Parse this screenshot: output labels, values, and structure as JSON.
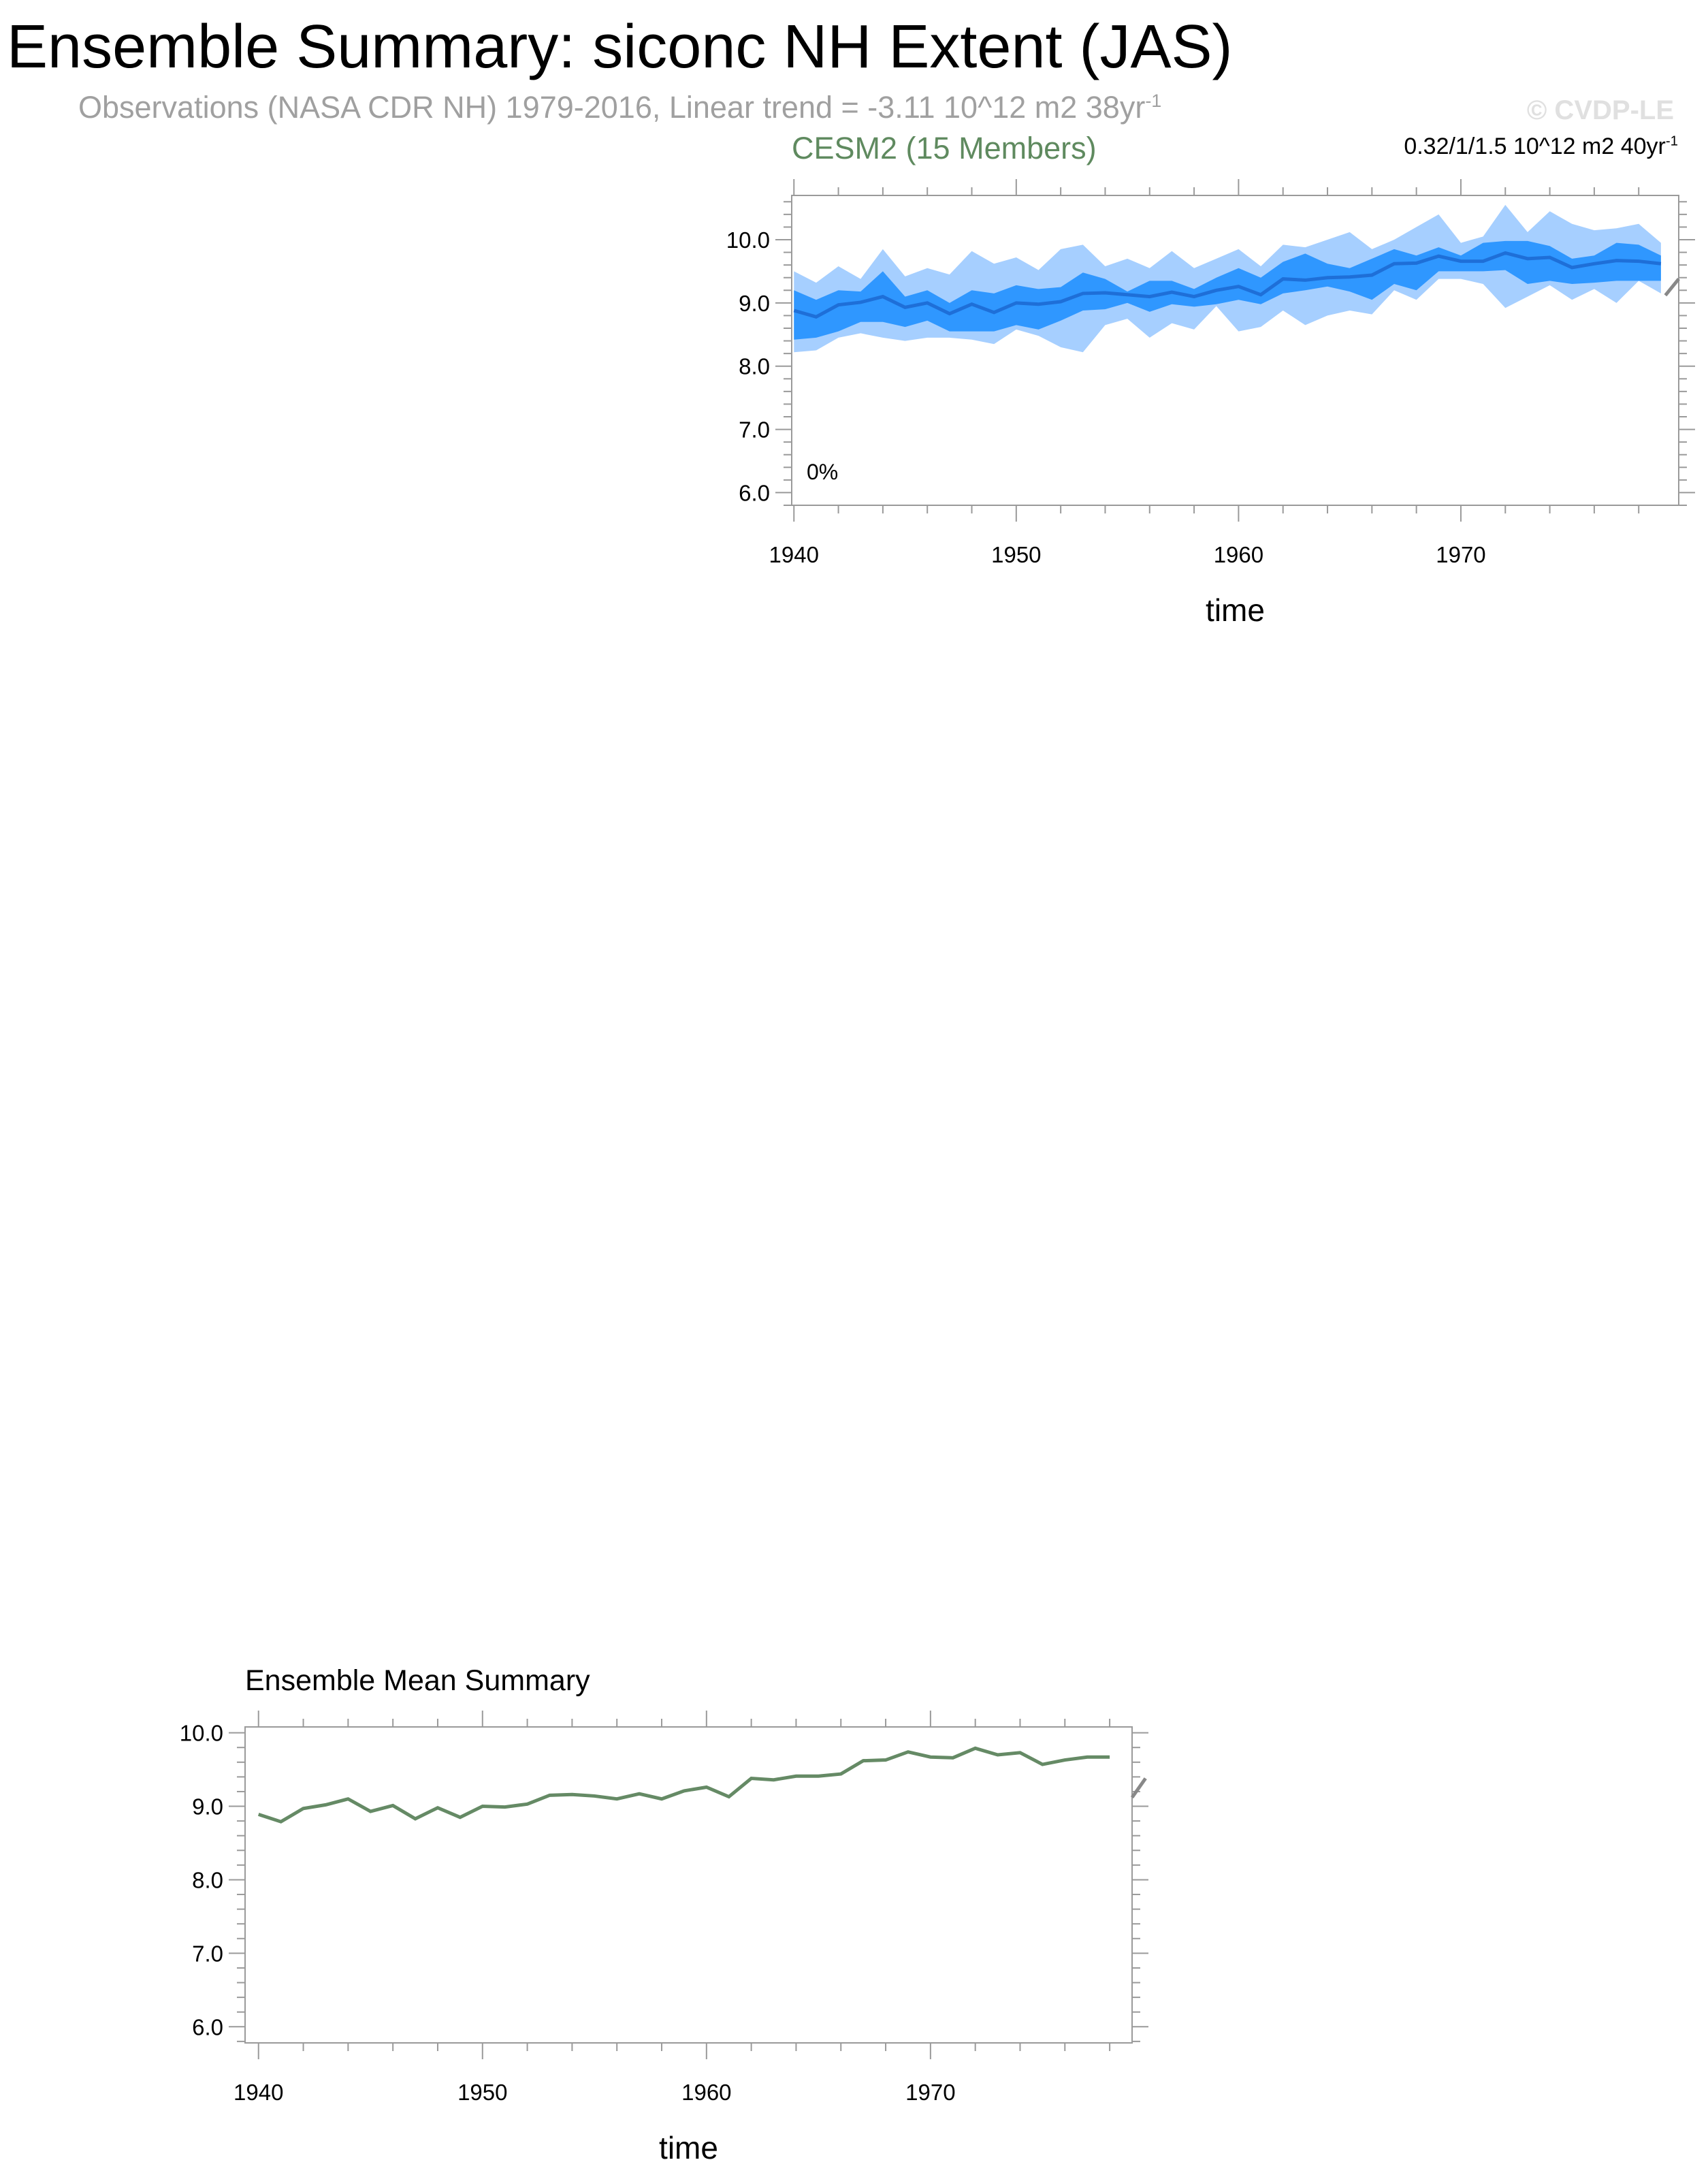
{
  "title": "Ensemble Summary: siconc NH Extent (JAS)",
  "subtitle": "Observations (NASA CDR NH) 1979-2016, Linear trend = -3.11 10^12 m2 38yr",
  "subtitle_sup": "-1",
  "copyright": "© CVDP-LE",
  "colors": {
    "outer_band": "#a6cfff",
    "inner_band": "#2f97ff",
    "mean_line": "#1e6fd8",
    "ens_mean_line": "#658a65",
    "model_title": "#5f8a5f",
    "obs_stub": "#888888"
  },
  "chart_data": [
    {
      "type": "area",
      "title": "CESM2 (15 Members)",
      "trend_label": "0.32/1/1.5 10^12 m2 40yr",
      "trend_sup": "-1",
      "annotation": "0%",
      "xlabel": "time",
      "ylabel": "",
      "xlim": [
        1939.9,
        1979.8
      ],
      "ylim": [
        5.8,
        10.7
      ],
      "xticks": [
        1940,
        1950,
        1960,
        1970
      ],
      "xtick_labels": [
        "1940",
        "1950",
        "1960",
        "1970"
      ],
      "yticks": [
        6.0,
        7.0,
        8.0,
        9.0,
        10.0
      ],
      "ytick_labels": [
        "6.0",
        "7.0",
        "8.0",
        "9.0",
        "10.0"
      ],
      "x": [
        1940,
        1941,
        1942,
        1943,
        1944,
        1945,
        1946,
        1947,
        1948,
        1949,
        1950,
        1951,
        1952,
        1953,
        1954,
        1955,
        1956,
        1957,
        1958,
        1959,
        1960,
        1961,
        1962,
        1963,
        1964,
        1965,
        1966,
        1967,
        1968,
        1969,
        1970,
        1971,
        1972,
        1973,
        1974,
        1975,
        1976,
        1977,
        1978,
        1979
      ],
      "series": [
        {
          "role": "mean",
          "values": [
            8.88,
            8.78,
            8.97,
            9.01,
            9.1,
            8.93,
            9.0,
            8.83,
            8.98,
            8.85,
            9.0,
            8.98,
            9.02,
            9.15,
            9.16,
            9.13,
            9.1,
            9.17,
            9.1,
            9.2,
            9.26,
            9.13,
            9.38,
            9.36,
            9.4,
            9.41,
            9.44,
            9.62,
            9.63,
            9.74,
            9.66,
            9.66,
            9.79,
            9.7,
            9.72,
            9.56,
            9.62,
            9.67,
            9.66,
            9.62
          ]
        },
        {
          "role": "p25",
          "values": [
            8.42,
            8.45,
            8.55,
            8.7,
            8.7,
            8.62,
            8.72,
            8.55,
            8.55,
            8.55,
            8.65,
            8.58,
            8.72,
            8.88,
            8.9,
            9.0,
            8.86,
            8.98,
            8.94,
            8.98,
            9.05,
            8.98,
            9.15,
            9.2,
            9.26,
            9.18,
            9.05,
            9.3,
            9.2,
            9.5,
            9.5,
            9.5,
            9.52,
            9.3,
            9.35,
            9.3,
            9.32,
            9.35,
            9.35,
            9.35
          ]
        },
        {
          "role": "p75",
          "values": [
            9.2,
            9.05,
            9.2,
            9.18,
            9.5,
            9.1,
            9.2,
            9.0,
            9.2,
            9.15,
            9.28,
            9.22,
            9.25,
            9.48,
            9.38,
            9.18,
            9.35,
            9.35,
            9.22,
            9.4,
            9.55,
            9.4,
            9.65,
            9.78,
            9.62,
            9.55,
            9.7,
            9.85,
            9.75,
            9.88,
            9.75,
            9.95,
            9.98,
            9.98,
            9.9,
            9.7,
            9.75,
            9.95,
            9.92,
            9.75
          ]
        },
        {
          "role": "min",
          "values": [
            8.22,
            8.25,
            8.45,
            8.52,
            8.45,
            8.4,
            8.45,
            8.45,
            8.42,
            8.35,
            8.58,
            8.48,
            8.3,
            8.22,
            8.65,
            8.75,
            8.45,
            8.68,
            8.58,
            8.95,
            8.55,
            8.62,
            8.88,
            8.65,
            8.8,
            8.88,
            8.82,
            9.2,
            9.05,
            9.38,
            9.38,
            9.3,
            8.92,
            9.1,
            9.28,
            9.05,
            9.22,
            9.0,
            9.35,
            9.15
          ]
        },
        {
          "role": "max",
          "values": [
            9.5,
            9.32,
            9.58,
            9.38,
            9.85,
            9.42,
            9.55,
            9.45,
            9.82,
            9.62,
            9.72,
            9.52,
            9.85,
            9.92,
            9.58,
            9.7,
            9.55,
            9.82,
            9.55,
            9.7,
            9.85,
            9.58,
            9.92,
            9.88,
            10.0,
            10.12,
            9.85,
            10.0,
            10.2,
            10.4,
            9.95,
            10.05,
            10.55,
            10.12,
            10.45,
            10.25,
            10.15,
            10.18,
            10.25,
            9.95
          ]
        }
      ],
      "obs_stub": {
        "x": [
          1979.2,
          1979.8
        ],
        "y": [
          9.12,
          9.38
        ]
      }
    },
    {
      "type": "line",
      "title": "Ensemble Mean Summary",
      "xlabel": "time",
      "ylabel": "",
      "xlim": [
        1939.4,
        1979.0
      ],
      "ylim": [
        5.78,
        10.08
      ],
      "xticks": [
        1940,
        1950,
        1960,
        1970
      ],
      "xtick_labels": [
        "1940",
        "1950",
        "1960",
        "1970"
      ],
      "yticks": [
        6.0,
        7.0,
        8.0,
        9.0,
        10.0
      ],
      "ytick_labels": [
        "6.0",
        "7.0",
        "8.0",
        "9.0",
        "10.0"
      ],
      "x": [
        1940,
        1941,
        1942,
        1943,
        1944,
        1945,
        1946,
        1947,
        1948,
        1949,
        1950,
        1951,
        1952,
        1953,
        1954,
        1955,
        1956,
        1957,
        1958,
        1959,
        1960,
        1961,
        1962,
        1963,
        1964,
        1965,
        1966,
        1967,
        1968,
        1969,
        1970,
        1971,
        1972,
        1973,
        1974,
        1975,
        1976,
        1977,
        1978
      ],
      "series": [
        {
          "values": [
            8.89,
            8.79,
            8.97,
            9.02,
            9.1,
            8.93,
            9.01,
            8.83,
            8.98,
            8.85,
            9.0,
            8.99,
            9.03,
            9.15,
            9.16,
            9.14,
            9.1,
            9.17,
            9.1,
            9.21,
            9.26,
            9.13,
            9.38,
            9.36,
            9.41,
            9.41,
            9.44,
            9.62,
            9.63,
            9.74,
            9.67,
            9.66,
            9.79,
            9.7,
            9.73,
            9.57,
            9.63,
            9.67,
            9.67
          ]
        }
      ],
      "obs_stub": {
        "x": [
          1979.0,
          1979.6
        ],
        "y": [
          9.12,
          9.38
        ]
      }
    }
  ]
}
